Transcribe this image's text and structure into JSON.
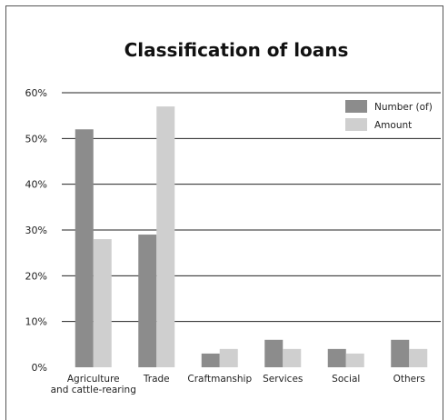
{
  "chart_data": {
    "type": "bar",
    "title": "Classification of loans",
    "categories": [
      [
        "Agriculture",
        "and cattle-rearing"
      ],
      [
        "Trade"
      ],
      [
        "Craftmanship"
      ],
      [
        "Services"
      ],
      [
        "Social"
      ],
      [
        "Others"
      ]
    ],
    "series": [
      {
        "name": "Number (of)",
        "values": [
          52,
          29,
          3,
          6,
          4,
          6
        ],
        "color": "#8c8c8c"
      },
      {
        "name": "Amount",
        "values": [
          28,
          57,
          4,
          4,
          3,
          4
        ],
        "color": "#cfcfcf"
      }
    ],
    "ylim": [
      0,
      60
    ],
    "yticks": [
      0,
      10,
      20,
      30,
      40,
      50,
      60
    ],
    "ytick_labels": [
      "0%",
      "10%",
      "20%",
      "30%",
      "40%",
      "50%",
      "60%"
    ],
    "grid": true,
    "legend_position": "top-right"
  }
}
